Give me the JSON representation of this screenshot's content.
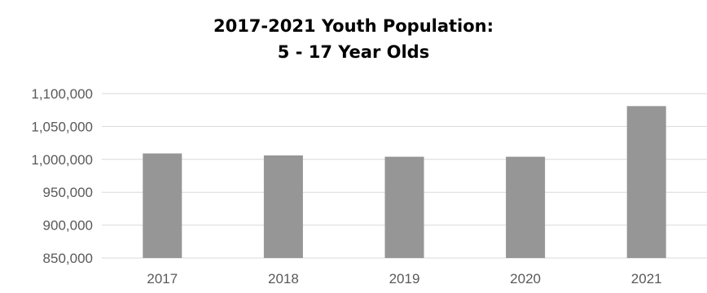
{
  "chart_data": {
    "type": "bar",
    "title_lines": [
      "2017-2021 Youth Population:",
      "5 - 17 Year Olds"
    ],
    "categories": [
      "2017",
      "2018",
      "2019",
      "2020",
      "2021"
    ],
    "values": [
      1009000,
      1006000,
      1004000,
      1004000,
      1081000
    ],
    "ylim": [
      850000,
      1100000
    ],
    "yticks": [
      850000,
      900000,
      950000,
      1000000,
      1050000,
      1100000
    ],
    "ytick_labels": [
      "850,000",
      "900,000",
      "950,000",
      "1,000,000",
      "1,050,000",
      "1,100,000"
    ],
    "grid": true,
    "legend": "none",
    "xlabel": "",
    "ylabel": "",
    "colors": {
      "bar": "#969696",
      "grid": "#d9d9d9",
      "tick_text": "#595959"
    }
  }
}
